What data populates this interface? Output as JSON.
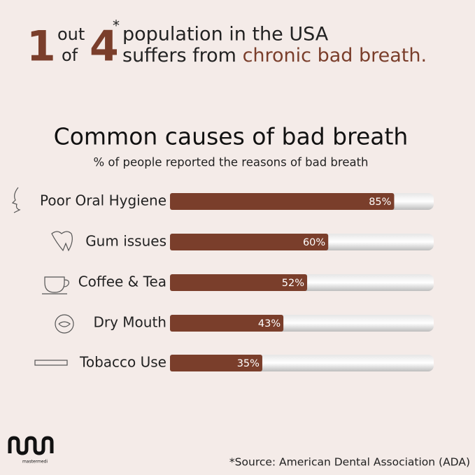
{
  "headline": {
    "number_one": "1",
    "out": "out",
    "of": "of",
    "number_four": "4",
    "asterisk": "*",
    "line1": "population in the USA",
    "line2_start": "suffers from",
    "line2_highlight": "chronic bad breath."
  },
  "chart_data": {
    "type": "bar",
    "orientation": "horizontal",
    "title": "Common causes of bad breath",
    "subtitle": "% of people reported the reasons of bad breath",
    "categories": [
      "Poor Oral Hygiene",
      "Gum issues",
      "Coffee & Tea",
      "Dry Mouth",
      "Tobacco Use"
    ],
    "values": [
      85,
      60,
      52,
      43,
      35
    ],
    "value_labels": [
      "85%",
      "60%",
      "52%",
      "43%",
      "35%"
    ],
    "color": "#7a3e2b",
    "xlim": [
      0,
      100
    ]
  },
  "footer": {
    "logo": "mastermedi",
    "source": "*Source: American Dental Association (ADA)"
  }
}
